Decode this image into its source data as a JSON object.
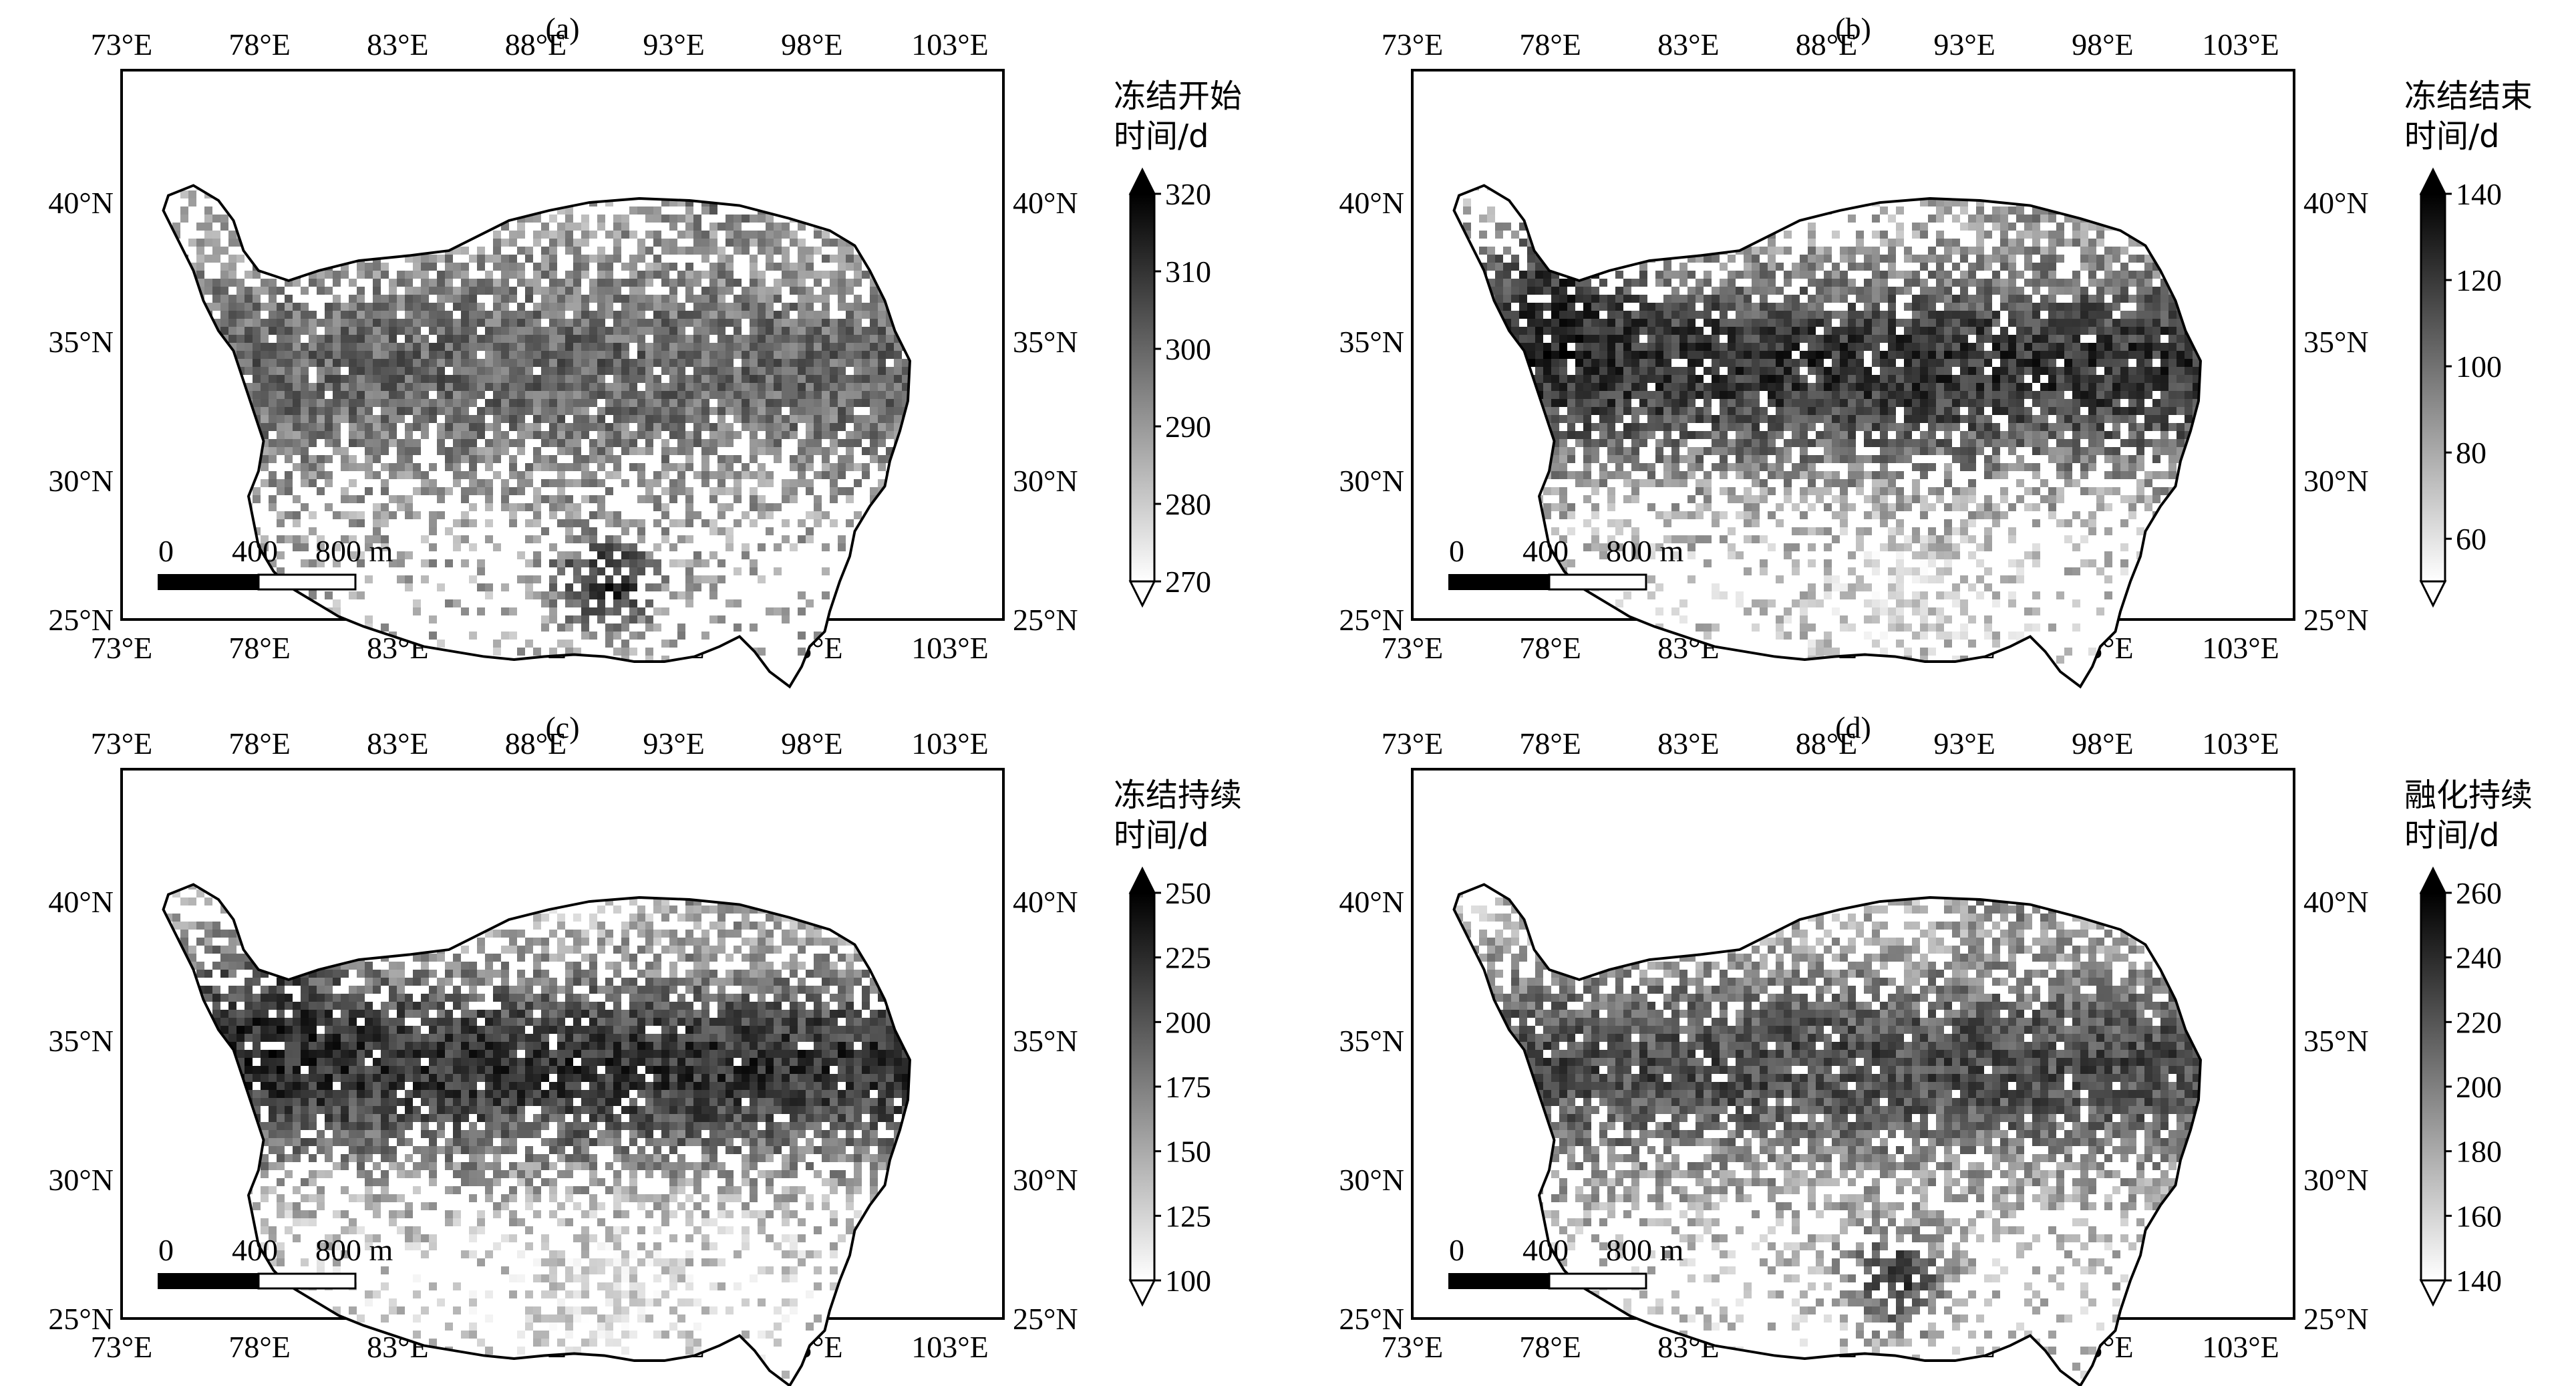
{
  "lon_ticks": [
    "73°E",
    "78°E",
    "83°E",
    "88°E",
    "93°E",
    "98°E",
    "103°E"
  ],
  "lat_ticks": [
    "25°N",
    "30°N",
    "35°N",
    "40°N"
  ],
  "scale_bar": {
    "labels": [
      "0",
      "400",
      "800 m"
    ]
  },
  "panels": [
    {
      "id": "a",
      "label": "(a)",
      "colorbar": {
        "title_line1": "冻结开始",
        "title_line2": "时间/d",
        "ticks": [
          "270",
          "280",
          "290",
          "300",
          "310",
          "320"
        ]
      },
      "pattern": "onset"
    },
    {
      "id": "b",
      "label": "(b)",
      "colorbar": {
        "title_line1": "冻结结束",
        "title_line2": "时间/d",
        "ticks": [
          "60",
          "80",
          "100",
          "120",
          "140"
        ]
      },
      "pattern": "end"
    },
    {
      "id": "c",
      "label": "(c)",
      "colorbar": {
        "title_line1": "冻结持续",
        "title_line2": "时间/d",
        "ticks": [
          "100",
          "125",
          "150",
          "175",
          "200",
          "225",
          "250"
        ]
      },
      "pattern": "duration"
    },
    {
      "id": "d",
      "label": "(d)",
      "colorbar": {
        "title_line1": "融化持续",
        "title_line2": "时间/d",
        "ticks": [
          "140",
          "160",
          "180",
          "200",
          "220",
          "240",
          "260"
        ]
      },
      "pattern": "thaw"
    }
  ],
  "colors": {
    "colorbar_low": "#ffffff",
    "colorbar_high": "#000000",
    "frame": "#000000"
  }
}
